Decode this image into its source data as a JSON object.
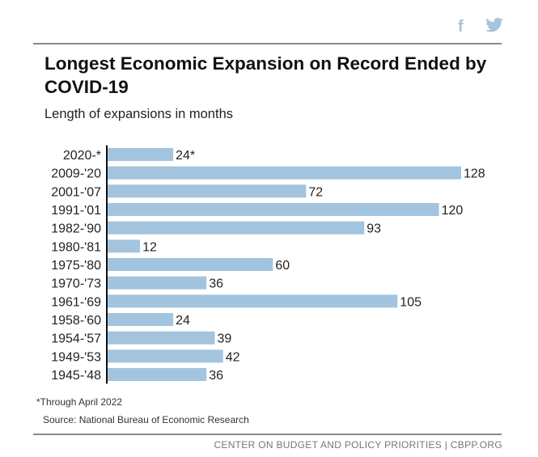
{
  "header": {
    "share_icons": [
      "facebook-icon",
      "twitter-icon"
    ],
    "facebook_glyph": "f"
  },
  "chart_data": {
    "type": "bar",
    "orientation": "horizontal",
    "title": "Longest Economic Expansion on Record Ended by COVID-19",
    "subtitle": "Length of expansions in months",
    "categories": [
      "2020-*",
      "2009-'20",
      "2001-'07",
      "1991-'01",
      "1982-'90",
      "1980-'81",
      "1975-'80",
      "1970-'73",
      "1961-'69",
      "1958-'60",
      "1954-'57",
      "1949-'53",
      "1945-'48"
    ],
    "values": [
      24,
      128,
      72,
      120,
      93,
      12,
      60,
      36,
      105,
      24,
      39,
      42,
      36
    ],
    "data_labels": [
      "24*",
      "128",
      "72",
      "120",
      "93",
      "12",
      "60",
      "36",
      "105",
      "24",
      "39",
      "42",
      "36"
    ],
    "xlim": [
      0,
      128
    ],
    "grid": false,
    "bar_color": "#a3c4de"
  },
  "notes": {
    "footnote": "*Through April 2022",
    "source": "Source: National Bureau of Economic Research"
  },
  "footer": {
    "text": "CENTER ON BUDGET AND POLICY PRIORITIES | CBPP.ORG"
  }
}
